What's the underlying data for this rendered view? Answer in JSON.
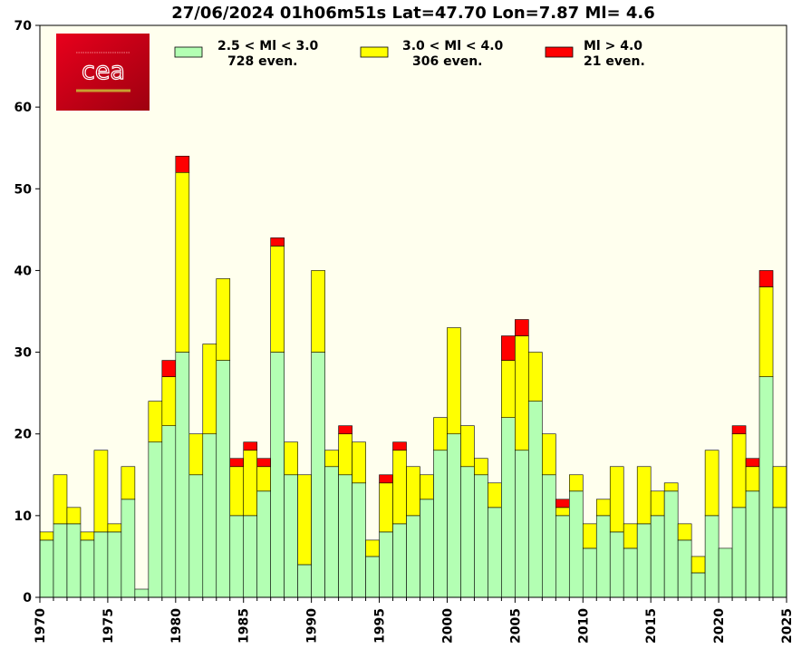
{
  "chart_data": {
    "type": "bar",
    "stacked": true,
    "title": "27/06/2024 01h06m51s Lat=47.70 Lon=7.87 Ml= 4.6",
    "xlabel": "",
    "ylabel": "",
    "xlim": [
      1970,
      2025
    ],
    "ylim": [
      0,
      70
    ],
    "x_ticks": [
      "1970",
      "1975",
      "1980",
      "1985",
      "1990",
      "1995",
      "2000",
      "2005",
      "2010",
      "2015",
      "2020",
      "2025"
    ],
    "y_ticks": [
      "0",
      "10",
      "20",
      "30",
      "40",
      "50",
      "60",
      "70"
    ],
    "categories": [
      1970,
      1971,
      1972,
      1973,
      1974,
      1975,
      1976,
      1977,
      1978,
      1979,
      1980,
      1981,
      1982,
      1983,
      1984,
      1985,
      1986,
      1987,
      1988,
      1989,
      1990,
      1991,
      1992,
      1993,
      1994,
      1995,
      1996,
      1997,
      1998,
      1999,
      2000,
      2001,
      2002,
      2003,
      2004,
      2005,
      2006,
      2007,
      2008,
      2009,
      2010,
      2011,
      2012,
      2013,
      2014,
      2015,
      2016,
      2017,
      2018,
      2019,
      2020,
      2021,
      2022,
      2023,
      2024
    ],
    "series": [
      {
        "name": "2.5 < Ml <  3.0",
        "count_label": "728 even.",
        "color": "#b3ffb3",
        "values": [
          7,
          9,
          9,
          7,
          8,
          8,
          12,
          1,
          19,
          21,
          30,
          15,
          20,
          29,
          10,
          10,
          13,
          30,
          15,
          4,
          30,
          16,
          15,
          14,
          5,
          8,
          9,
          10,
          12,
          18,
          20,
          16,
          15,
          11,
          22,
          18,
          24,
          15,
          10,
          13,
          6,
          10,
          8,
          6,
          9,
          10,
          13,
          7,
          3,
          10,
          6,
          11,
          13,
          27,
          11
        ]
      },
      {
        "name": "3.0 < Ml <  4.0",
        "count_label": "306 even.",
        "color": "#ffff00",
        "values": [
          1,
          6,
          2,
          1,
          10,
          1,
          4,
          0,
          5,
          6,
          22,
          5,
          11,
          10,
          6,
          8,
          3,
          13,
          4,
          11,
          10,
          2,
          5,
          5,
          2,
          6,
          9,
          6,
          3,
          4,
          13,
          5,
          2,
          3,
          7,
          14,
          6,
          5,
          1,
          2,
          3,
          2,
          8,
          3,
          7,
          3,
          1,
          2,
          2,
          8,
          0,
          9,
          3,
          11,
          5
        ]
      },
      {
        "name": "Ml >  4.0",
        "count_label": "21 even.",
        "color": "#ff0000",
        "values": [
          0,
          0,
          0,
          0,
          0,
          0,
          0,
          0,
          0,
          2,
          2,
          0,
          0,
          0,
          1,
          1,
          1,
          1,
          0,
          0,
          0,
          0,
          1,
          0,
          0,
          1,
          1,
          0,
          0,
          0,
          0,
          0,
          0,
          0,
          3,
          2,
          0,
          0,
          1,
          0,
          0,
          0,
          0,
          0,
          0,
          0,
          0,
          0,
          0,
          0,
          0,
          1,
          1,
          2,
          0
        ]
      }
    ],
    "legend": [
      {
        "label": "2.5 < Ml <  3.0",
        "count": "728 even.",
        "color": "#b3ffb3"
      },
      {
        "label": "3.0 < Ml <  4.0",
        "count": "306 even.",
        "color": "#ffff00"
      },
      {
        "label": "Ml >  4.0",
        "count": "21 even.",
        "color": "#ff0000"
      }
    ],
    "legend_position": "top",
    "plot_background": "#ffffee",
    "grid": false
  },
  "logo": {
    "text": "cea",
    "color": "#d40019"
  }
}
